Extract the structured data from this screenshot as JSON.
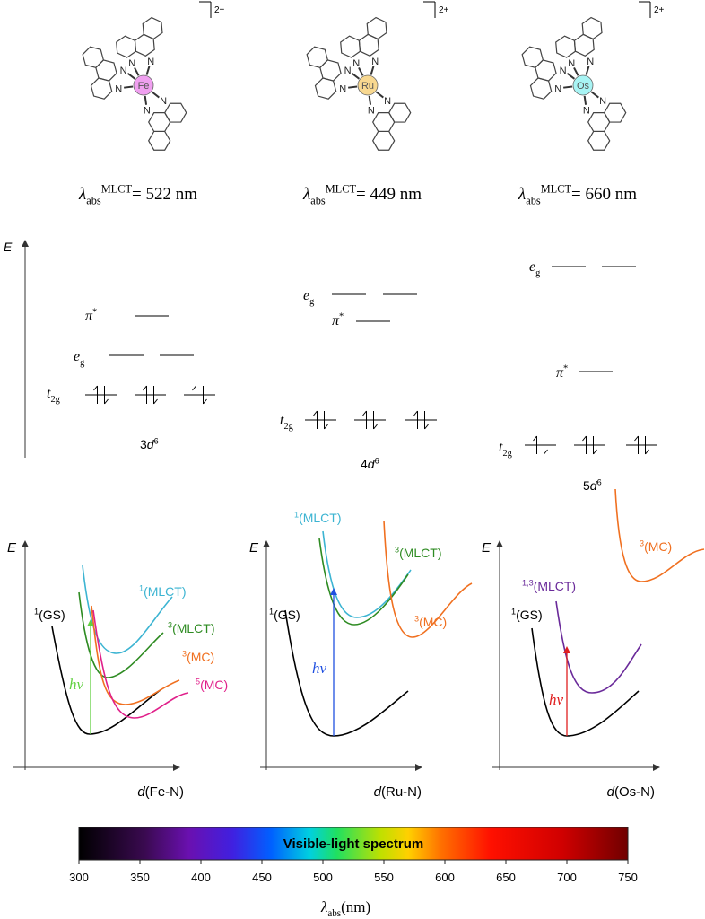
{
  "complexes": [
    {
      "metal": "Fe",
      "charge": "2+",
      "lambda": {
        "symbol": "λ",
        "sub": "abs",
        "sup": "MLCT",
        "value": "= 522 nm"
      }
    },
    {
      "metal": "Ru",
      "charge": "2+",
      "lambda": {
        "symbol": "λ",
        "sub": "abs",
        "sup": "MLCT",
        "value": "= 449 nm"
      }
    },
    {
      "metal": "Os",
      "charge": "2+",
      "lambda": {
        "symbol": "λ",
        "sub": "abs",
        "sup": "MLCT",
        "value": "= 660 nm"
      }
    }
  ],
  "energy_axis_label": "E",
  "diagrams": [
    {
      "pi": {
        "base": "π",
        "sup": "*"
      },
      "eg": {
        "base": "e",
        "sub": "g"
      },
      "t2g": {
        "base": "t",
        "sub": "2g"
      },
      "config": {
        "n": "3",
        "d": "d",
        "sup": "6"
      }
    },
    {
      "pi": {
        "base": "π",
        "sup": "*"
      },
      "eg": {
        "base": "e",
        "sub": "g"
      },
      "t2g": {
        "base": "t",
        "sub": "2g"
      },
      "config": {
        "n": "4",
        "d": "d",
        "sup": "6"
      }
    },
    {
      "pi": {
        "base": "π",
        "sup": "*"
      },
      "eg": {
        "base": "e",
        "sub": "g"
      },
      "t2g": {
        "base": "t",
        "sub": "2g"
      },
      "config": {
        "n": "5",
        "d": "d",
        "sup": "6"
      }
    }
  ],
  "potential": {
    "y_label": "E",
    "panels": [
      {
        "x_label": {
          "var": "d",
          "text": "(Fe-N)"
        },
        "excitation": "hν",
        "curves": [
          {
            "sup": "1",
            "text": "(GS)",
            "color": "#000000"
          },
          {
            "sup": "1",
            "text": "(MLCT)",
            "color": "#3cb4d2"
          },
          {
            "sup": "3",
            "text": "(MLCT)",
            "color": "#2e8b22"
          },
          {
            "sup": "3",
            "text": "(MC)",
            "color": "#f07020"
          },
          {
            "sup": "5",
            "text": "(MC)",
            "color": "#e0208a"
          }
        ]
      },
      {
        "x_label": {
          "var": "d",
          "text": "(Ru-N)"
        },
        "excitation": "hν",
        "curves": [
          {
            "sup": "1",
            "text": "(GS)",
            "color": "#000000"
          },
          {
            "sup": "1",
            "text": "(MLCT)",
            "color": "#3cb4d2"
          },
          {
            "sup": "3",
            "text": "(MLCT)",
            "color": "#2e8b22"
          },
          {
            "sup": "3",
            "text": "(MC)",
            "color": "#f07020"
          }
        ]
      },
      {
        "x_label": {
          "var": "d",
          "text": "(Os-N)"
        },
        "excitation": "hν",
        "curves": [
          {
            "sup": "1",
            "text": "(GS)",
            "color": "#000000"
          },
          {
            "sup": "1,3",
            "text": "(MLCT)",
            "color": "#6a2a9a"
          },
          {
            "sup": "3",
            "text": "(MC)",
            "color": "#f07020"
          }
        ]
      }
    ]
  },
  "spectrum": {
    "title": "Visible-light spectrum",
    "xlim": [
      300,
      750
    ],
    "xticks": [
      300,
      350,
      400,
      450,
      500,
      550,
      600,
      650,
      700,
      750
    ],
    "axis_label": {
      "symbol": "λ",
      "sub": "abs",
      "unit": "(nm)"
    }
  }
}
